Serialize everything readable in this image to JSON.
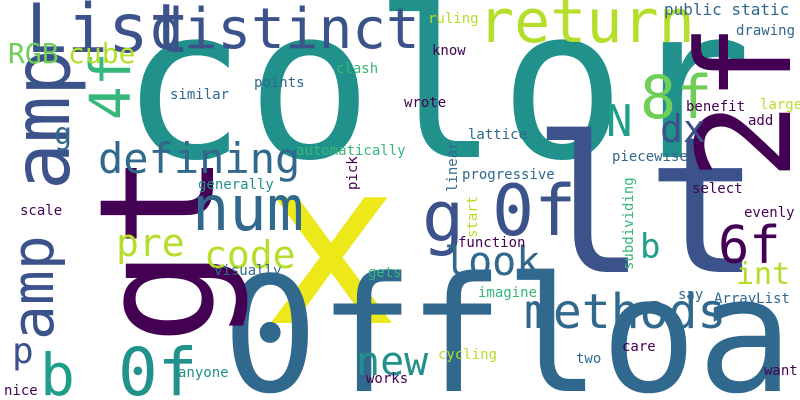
{
  "colors": {
    "background": "#ffffff",
    "dark_purple": "#440154",
    "indigo": "#3b528b",
    "steel_blue": "#31688e",
    "teal": "#21918c",
    "sea_green": "#1f9e89",
    "green": "#35b779",
    "light_green": "#6ece58",
    "lime": "#b5de2b",
    "yellow": "#ece81a"
  },
  "words": [
    {
      "text": "color",
      "color": "#21918c"
    },
    {
      "text": "x",
      "color": "#ece81a"
    },
    {
      "text": "0f",
      "color": "#31688e"
    },
    {
      "text": "float",
      "color": "#31688e"
    },
    {
      "text": "lt",
      "color": "#3b528b"
    },
    {
      "text": "gt",
      "color": "#440154"
    },
    {
      "text": "2f",
      "color": "#440154"
    },
    {
      "text": "amp",
      "color": "#3b528b"
    },
    {
      "text": "amp",
      "color": "#3b528b"
    },
    {
      "text": "List",
      "color": "#3b528b"
    },
    {
      "text": "distinct",
      "color": "#3b528b"
    },
    {
      "text": "return",
      "color": "#b5de2b"
    },
    {
      "text": "num",
      "color": "#31688e"
    },
    {
      "text": "8f",
      "color": "#6ece58"
    },
    {
      "text": "4f",
      "color": "#35b779"
    },
    {
      "text": "0f",
      "color": "#3b528b"
    },
    {
      "text": "0f",
      "color": "#21918c"
    },
    {
      "text": "methods",
      "color": "#31688e"
    },
    {
      "text": "defining",
      "color": "#31688e"
    },
    {
      "text": "g",
      "color": "#3b528b"
    },
    {
      "text": "6f",
      "color": "#440154"
    },
    {
      "text": "b",
      "color": "#1f9e89"
    },
    {
      "text": "look",
      "color": "#31688e"
    },
    {
      "text": "new",
      "color": "#21918c"
    },
    {
      "text": "code",
      "color": "#b5de2b"
    },
    {
      "text": "pre",
      "color": "#b5de2b"
    },
    {
      "text": "N",
      "color": "#1f9e89"
    },
    {
      "text": "dx",
      "color": "#3b528b"
    },
    {
      "text": "RGB",
      "color": "#6ece58"
    },
    {
      "text": "cube",
      "color": "#b5de2b"
    },
    {
      "text": "int",
      "color": "#b5de2b"
    },
    {
      "text": "b",
      "color": "#1f9e89"
    },
    {
      "text": "p",
      "color": "#3b528b"
    },
    {
      "text": "g",
      "color": "#31688e"
    },
    {
      "text": "public static",
      "color": "#31688e"
    },
    {
      "text": "ruling",
      "color": "#b5de2b"
    },
    {
      "text": "know",
      "color": "#440154"
    },
    {
      "text": "drawing",
      "color": "#31688e"
    },
    {
      "text": "clash",
      "color": "#35b779"
    },
    {
      "text": "points",
      "color": "#31688e"
    },
    {
      "text": "similar",
      "color": "#31688e"
    },
    {
      "text": "wrote",
      "color": "#440154"
    },
    {
      "text": "benefit",
      "color": "#440154"
    },
    {
      "text": "large",
      "color": "#b5de2b"
    },
    {
      "text": "add",
      "color": "#440154"
    },
    {
      "text": "automatically",
      "color": "#35b779"
    },
    {
      "text": "lattice",
      "color": "#31688e"
    },
    {
      "text": "progressive",
      "color": "#31688e"
    },
    {
      "text": "piecewise",
      "color": "#31688e"
    },
    {
      "text": "generally",
      "color": "#21918c"
    },
    {
      "text": "select",
      "color": "#440154"
    },
    {
      "text": "pick",
      "color": "#440154"
    },
    {
      "text": "linear",
      "color": "#31688e"
    },
    {
      "text": "start",
      "color": "#b5de2b"
    },
    {
      "text": "subdividing",
      "color": "#35b779"
    },
    {
      "text": "scale",
      "color": "#440154"
    },
    {
      "text": "evenly",
      "color": "#440154"
    },
    {
      "text": "function",
      "color": "#440154"
    },
    {
      "text": "visually",
      "color": "#31688e"
    },
    {
      "text": "gets",
      "color": "#35b779"
    },
    {
      "text": "imagine",
      "color": "#35b779"
    },
    {
      "text": "say",
      "color": "#31688e"
    },
    {
      "text": "ArrayList",
      "color": "#31688e"
    },
    {
      "text": "care",
      "color": "#440154"
    },
    {
      "text": "anyone",
      "color": "#21918c"
    },
    {
      "text": "cycling",
      "color": "#b5de2b"
    },
    {
      "text": "two",
      "color": "#31688e"
    },
    {
      "text": "works",
      "color": "#440154"
    },
    {
      "text": "want",
      "color": "#440154"
    },
    {
      "text": "nice",
      "color": "#440154"
    }
  ]
}
